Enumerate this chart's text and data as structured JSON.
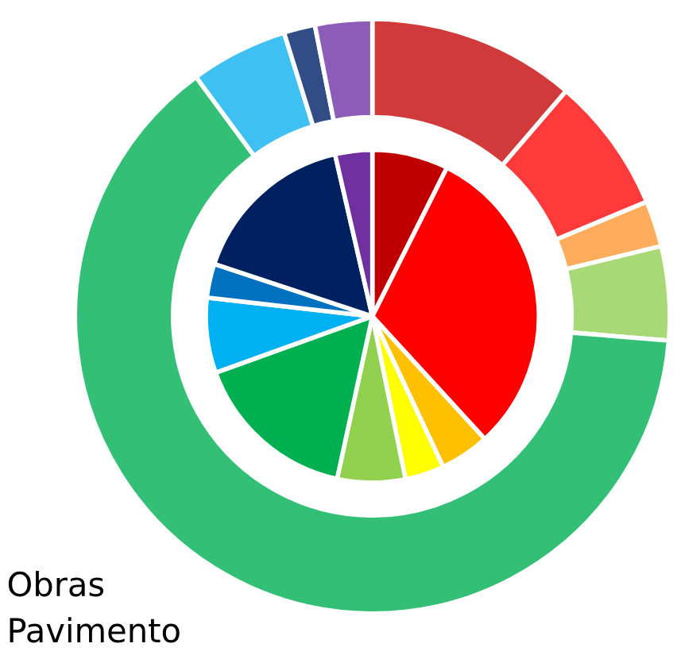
{
  "chart_data": {
    "type": "donut",
    "annotations": [
      "Obras",
      "Pavimento"
    ],
    "series": [
      {
        "values": [
          11.3,
          7.4,
          2.5,
          5.1,
          63.6,
          5.3,
          1.7,
          3.1
        ],
        "colors": [
          "#d03a3a",
          "#ff3a3a",
          "#ffad5c",
          "#a9d977",
          "#33bf75",
          "#3ec0f2",
          "#324d85",
          "#8c5cb8"
        ]
      },
      {
        "type": "pie",
        "values": [
          7.4,
          30.8,
          4.8,
          3.8,
          6.6,
          16.1,
          7.3,
          3.3,
          16.3,
          3.6
        ],
        "colors": [
          "#c00000",
          "#ff0000",
          "#ffc000",
          "#ffff00",
          "#92d050",
          "#00b050",
          "#00b0f0",
          "#0070c0",
          "#002060",
          "#7030a0"
        ]
      }
    ]
  }
}
